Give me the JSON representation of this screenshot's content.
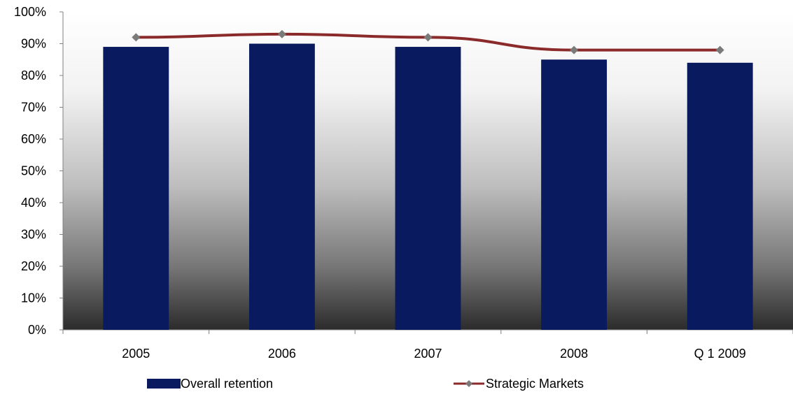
{
  "chart_data": {
    "type": "bar",
    "title": "",
    "xlabel": "",
    "ylabel": "",
    "categories": [
      "2005",
      "2006",
      "2007",
      "2008",
      "Q 1 2009"
    ],
    "ylim": [
      0,
      100
    ],
    "y_ticks": [
      "0%",
      "10%",
      "20%",
      "30%",
      "40%",
      "50%",
      "60%",
      "70%",
      "80%",
      "90%",
      "100%"
    ],
    "grid": false,
    "legend_position": "bottom",
    "series": [
      {
        "name": "Overall retention",
        "kind": "bar",
        "color": "#0a1a5e",
        "values": [
          89,
          90,
          89,
          85,
          84
        ]
      },
      {
        "name": "Strategic Markets",
        "kind": "line",
        "color": "#8b2a2a",
        "marker_color": "#7a7a7a",
        "values": [
          92,
          93,
          92,
          88,
          88
        ]
      }
    ],
    "plot_background": "gradient white (top) to dark gray (bottom)"
  }
}
